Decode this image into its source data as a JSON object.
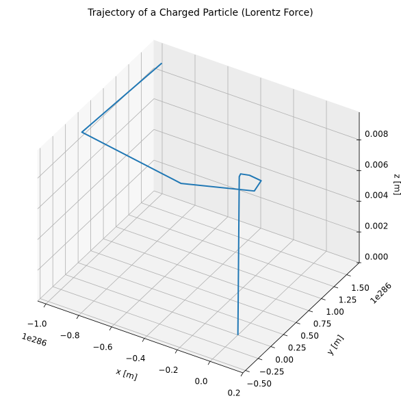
{
  "chart_data": {
    "type": "line3d",
    "title": "Trajectory of a Charged Particle (Lorentz Force)",
    "xlabel": "x [m]",
    "ylabel": "y [m]",
    "zlabel": "z [m]",
    "x_offset_label": "1e286",
    "y_offset_label": "1e286",
    "color": "#1f77b4",
    "x": [
      0,
      -0.0526,
      -0.0594,
      -0.0134,
      0.064,
      0.0818,
      -0.279,
      -0.9611,
      -0.93
    ],
    "y": [
      0,
      0.1976,
      0.2466,
      0.2732,
      0.2518,
      0.0589,
      -0.2169,
      0.036,
      1.516
    ],
    "z": [
      0,
      0.0095,
      0.0095,
      0.0095,
      0.0095,
      0.0095,
      0.0095,
      0.0095,
      0.0095
    ],
    "xlim": [
      -1.05,
      0.2
    ],
    "ylim": [
      -0.55,
      1.75
    ],
    "zlim": [
      0,
      0.0098
    ],
    "xticks": [
      {
        "value": -1.0,
        "label": "−1.0"
      },
      {
        "value": -0.8,
        "label": "−0.8"
      },
      {
        "value": -0.6,
        "label": "−0.6"
      },
      {
        "value": -0.4,
        "label": "−0.4"
      },
      {
        "value": -0.2,
        "label": "−0.2"
      },
      {
        "value": 0.0,
        "label": "0.0"
      },
      {
        "value": 0.2,
        "label": "0.2"
      }
    ],
    "yticks": [
      {
        "value": -0.5,
        "label": "−0.50"
      },
      {
        "value": -0.25,
        "label": "−0.25"
      },
      {
        "value": 0.0,
        "label": "0.00"
      },
      {
        "value": 0.25,
        "label": "0.25"
      },
      {
        "value": 0.5,
        "label": "0.50"
      },
      {
        "value": 0.75,
        "label": "0.75"
      },
      {
        "value": 1.0,
        "label": "1.00"
      },
      {
        "value": 1.25,
        "label": "1.25"
      },
      {
        "value": 1.5,
        "label": "1.50"
      }
    ],
    "zticks": [
      {
        "value": 0,
        "label": "0.000"
      },
      {
        "value": 0.002,
        "label": "0.002"
      },
      {
        "value": 0.004,
        "label": "0.004"
      },
      {
        "value": 0.006,
        "label": "0.006"
      },
      {
        "value": 0.008,
        "label": "0.008"
      }
    ],
    "grid": true
  }
}
